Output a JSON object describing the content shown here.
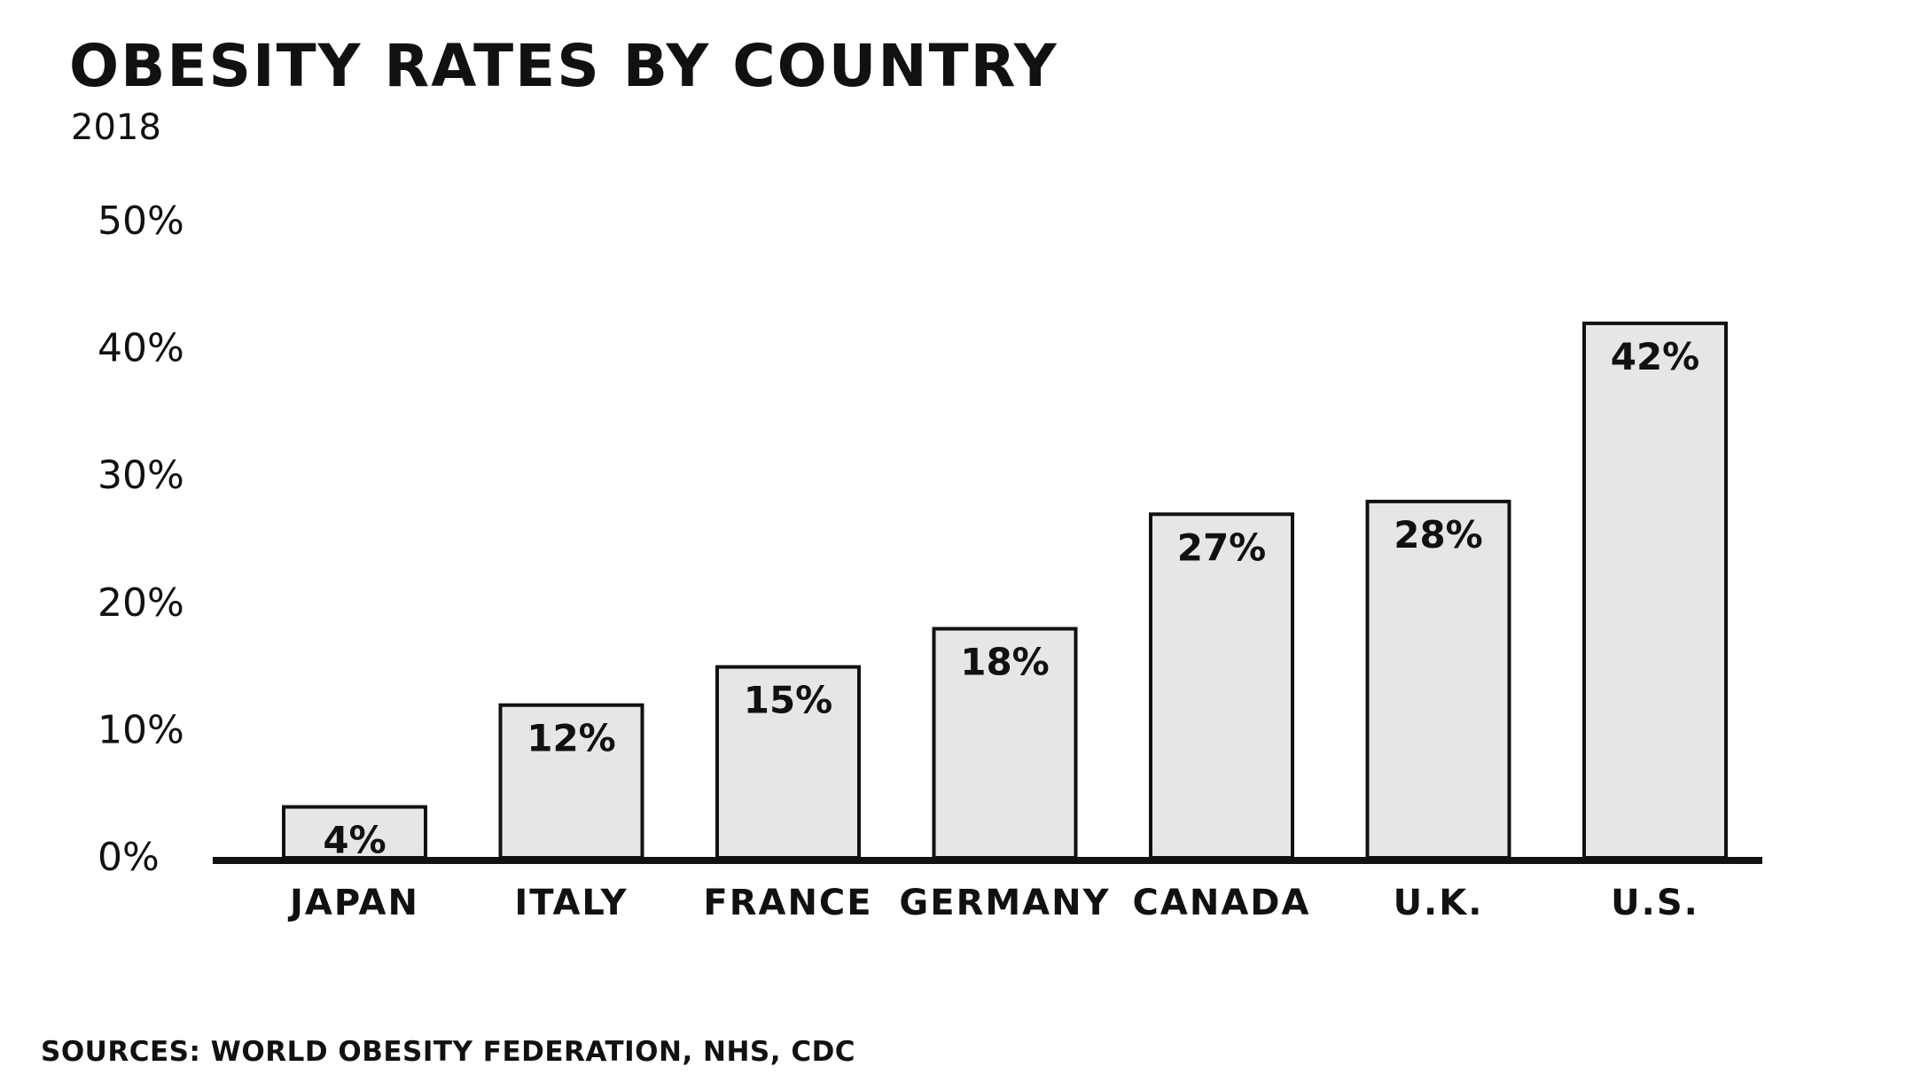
{
  "chart_data": {
    "type": "bar",
    "title": "OBESITY RATES BY COUNTRY",
    "subtitle": "2018",
    "source": "SOURCES: WORLD OBESITY FEDERATION, NHS, CDC",
    "categories": [
      "JAPAN",
      "ITALY",
      "FRANCE",
      "GERMANY",
      "CANADA",
      "U.K.",
      "U.S."
    ],
    "values": [
      4,
      12,
      15,
      18,
      27,
      28,
      42
    ],
    "data_labels": [
      "4%",
      "12%",
      "15%",
      "18%",
      "27%",
      "28%",
      "42%"
    ],
    "yticks": [
      0,
      10,
      20,
      30,
      40,
      50
    ],
    "ytick_labels": [
      "0%",
      "10%",
      "20%",
      "30%",
      "40%",
      "50%"
    ],
    "ylim": [
      0,
      50
    ],
    "xlabel": "",
    "ylabel": "",
    "grid": false,
    "legend": "none",
    "colors": {
      "bar_fill": "#e6e6e6",
      "bar_stroke": "#111111",
      "axis": "#111111"
    }
  }
}
